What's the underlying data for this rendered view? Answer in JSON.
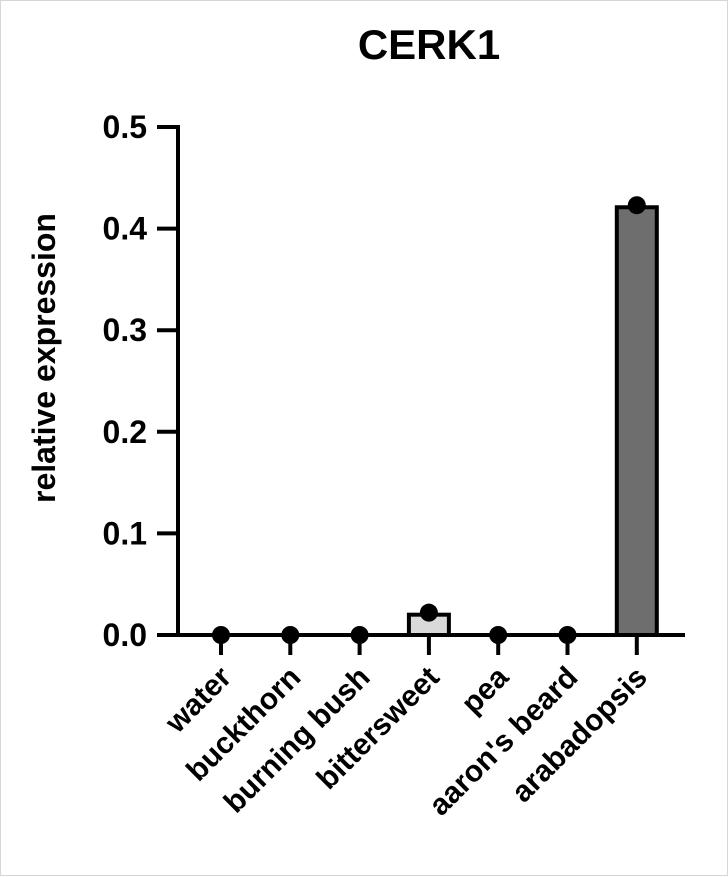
{
  "chart_data": {
    "type": "bar",
    "title": "CERK1",
    "xlabel": "",
    "ylabel": "relative expression",
    "ylim": [
      0,
      0.5
    ],
    "yticks": [
      "0.0",
      "0.1",
      "0.2",
      "0.3",
      "0.4",
      "0.5"
    ],
    "categories": [
      "water",
      "buckthorn",
      "burning bush",
      "bittersweet",
      "pea",
      "aaron's beard",
      "arabadopsis"
    ],
    "values": [
      0.0,
      0.0,
      0.0,
      0.02,
      0.0,
      0.0,
      0.421
    ],
    "points": [
      0.0,
      0.0,
      0.0,
      0.022,
      0.0,
      0.0,
      0.423
    ],
    "bar_colors": [
      "#ffffff",
      "#ffffff",
      "#ffffff",
      "#d9d9d9",
      "#ffffff",
      "#ffffff",
      "#6e6e6e"
    ],
    "point_color": "#000000",
    "axis_color": "#000000",
    "grid": false,
    "legend": "none"
  }
}
